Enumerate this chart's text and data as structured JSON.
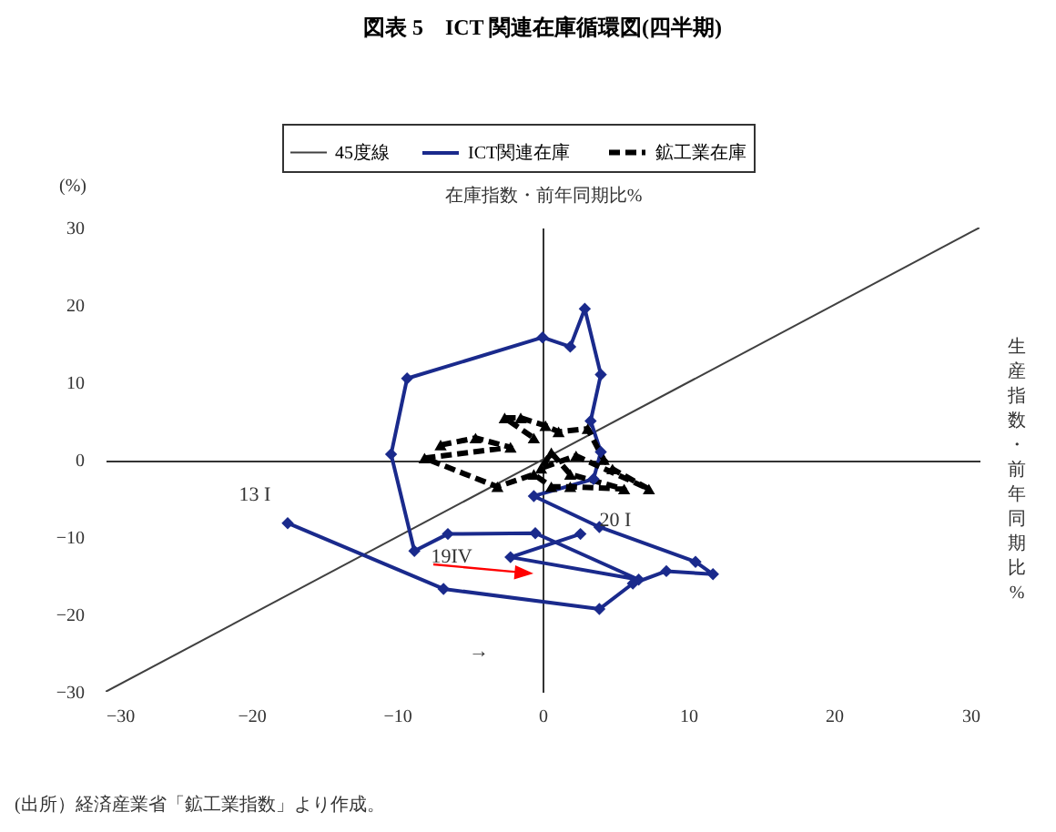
{
  "chart_data": {
    "type": "line",
    "title": "図表 5　ICT 関連在庫循環図(四半期)",
    "xlabel": "生産指数・前年同期比%",
    "ylabel": "在庫指数・前年同期比%",
    "xlim": [
      -30,
      30
    ],
    "ylim": [
      -30,
      30
    ],
    "xticks": [
      -30,
      -20,
      -10,
      0,
      10,
      20,
      30
    ],
    "yticks": [
      -30,
      -20,
      -10,
      0,
      10,
      20,
      30
    ],
    "legend": "top",
    "series": [
      {
        "name": "45度線",
        "color": "#404040",
        "marker": "none",
        "line_style": "solid",
        "x": [
          -30,
          30
        ],
        "values": [
          -30,
          30
        ]
      },
      {
        "name": "ICT関連在庫",
        "color": "#1a2a8c",
        "marker": "diamond",
        "line_style": "solid",
        "x": [
          -17.5,
          -6.8,
          3.9,
          6.2,
          8.5,
          11.7,
          10.5,
          3.9,
          -0.6,
          3.5,
          4,
          3.3,
          4,
          2.9,
          1.9,
          0,
          -9.3,
          -10.4,
          -8.8,
          -6.5,
          -0.5,
          6.6,
          -2.2,
          2.6
        ],
        "values": [
          -8.2,
          -16.7,
          -19.3,
          -16,
          -14.4,
          -14.8,
          -13.2,
          -8.7,
          -4.7,
          -2.5,
          1,
          5,
          11,
          19.5,
          14.6,
          15.8,
          10.5,
          0.7,
          -11.8,
          -9.6,
          -9.5,
          -15.5,
          -12.6,
          -9.6
        ]
      },
      {
        "name": "鉱工業在庫",
        "color": "#000000",
        "marker": "triangle",
        "line_style": "dashed",
        "x": [
          -7,
          -4.6,
          -2.2,
          -8.1,
          -3.1,
          -0.6,
          0.6,
          1.9,
          5.6,
          1.9,
          0.6,
          -0.1,
          2.3,
          7.3,
          4.8,
          4.2,
          3.1,
          1.1,
          0.2,
          -1.5,
          -2.6,
          -0.6
        ],
        "values": [
          1.9,
          2.8,
          1.6,
          0.2,
          -3.5,
          -1.9,
          -3.5,
          -3.5,
          -3.8,
          -1.9,
          0.9,
          -1.1,
          0.5,
          -3.8,
          -1.2,
          0,
          4,
          3.6,
          4.4,
          5.4,
          5.4,
          2.8
        ]
      }
    ],
    "annotations": [
      "(%)",
      "(出所）経済産業省「鉱工業指数」より作成。",
      "13 I",
      "20 I",
      "19IV",
      "→"
    ]
  }
}
